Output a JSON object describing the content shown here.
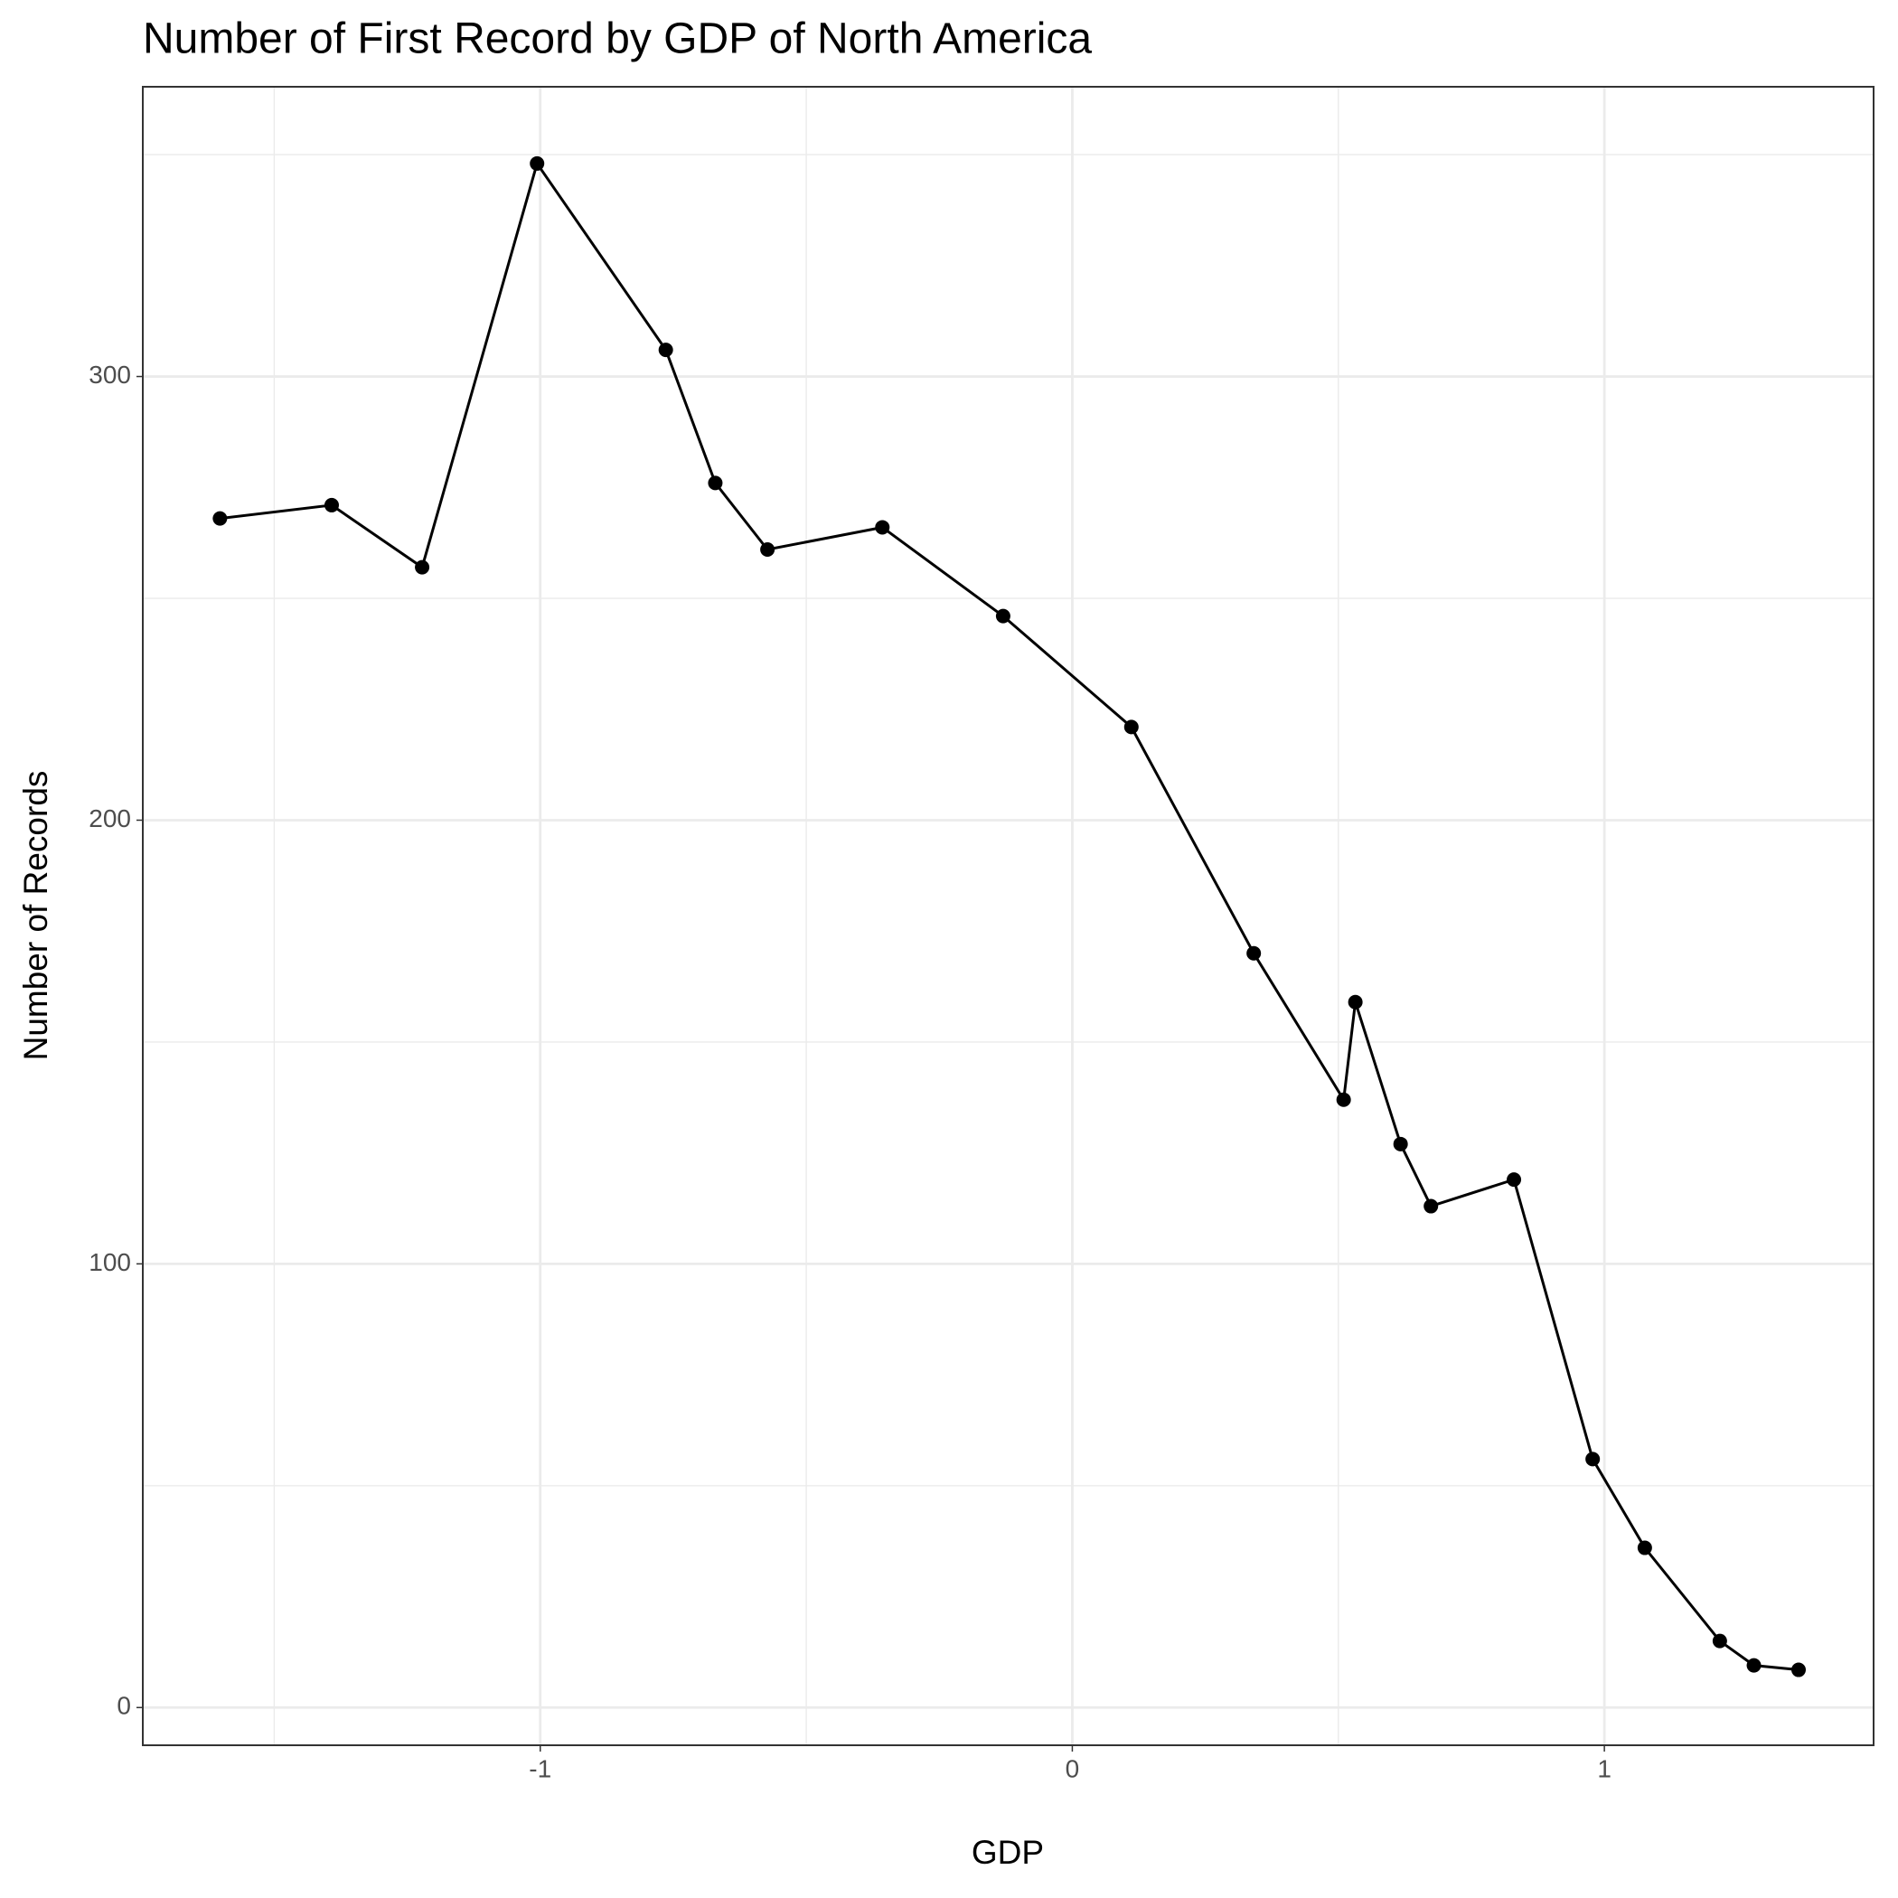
{
  "chart_data": {
    "type": "line",
    "title": "Number of First Record by GDP of North America",
    "x_label": "GDP",
    "y_label": "Number of Records",
    "x": [
      -1.602,
      -1.392,
      -1.222,
      -1.006,
      -0.764,
      -0.671,
      -0.573,
      -0.357,
      -0.13,
      0.111,
      0.341,
      0.51,
      0.532,
      0.617,
      0.674,
      0.83,
      0.978,
      1.076,
      1.217,
      1.281,
      1.365
    ],
    "series": [
      {
        "name": "Records",
        "color": "#000000",
        "values": [
          268,
          271,
          257,
          348,
          306,
          276,
          261,
          266,
          246,
          221,
          170,
          137,
          159,
          127,
          113,
          119,
          56,
          36,
          15,
          9.5,
          8.5
        ]
      }
    ],
    "xlim": [
      -1.747,
      1.506
    ],
    "ylim": [
      -8.5,
      365.3
    ],
    "xticks": [
      -1,
      0,
      1
    ],
    "yticks": [
      0,
      100,
      200,
      300
    ],
    "x_minor_grid": [
      -1.5,
      -0.5,
      0.5
    ],
    "y_minor_grid": [
      50,
      150,
      250,
      350
    ],
    "grid": true
  }
}
